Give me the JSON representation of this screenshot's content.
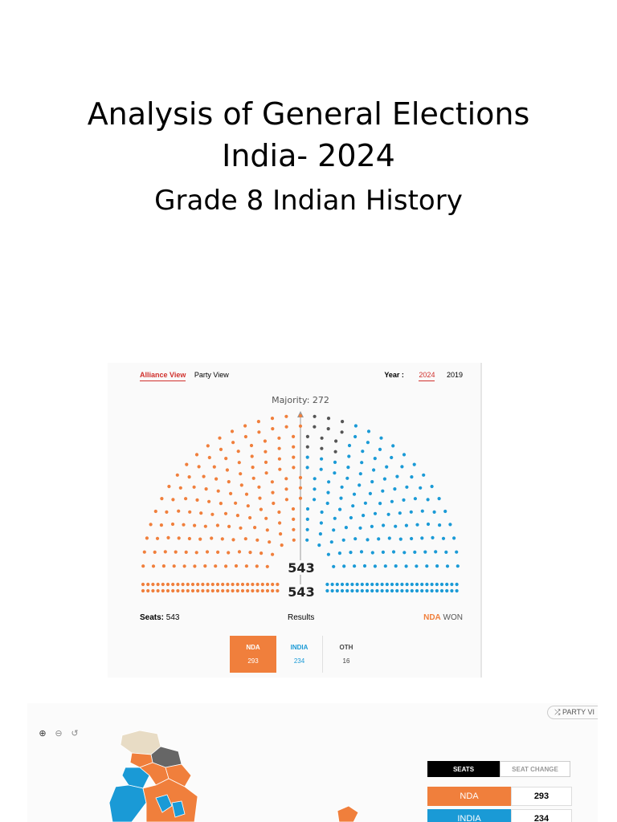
{
  "slide": {
    "title_line1": "Analysis of General Elections",
    "title_line2": "India- 2024",
    "subtitle": "Grade 8 Indian History"
  },
  "parliament": {
    "tabs": [
      "Alliance View",
      "Party View"
    ],
    "active_tab": "Alliance View",
    "year_label": "Year :",
    "years": [
      "2024",
      "2019"
    ],
    "active_year": "2024",
    "majority_label": "Majority: 272",
    "total_label": "543",
    "bottom_total_label": "543",
    "seats_label": "Seats:",
    "seats_value": "543",
    "results_label": "Results",
    "winner": "NDA",
    "won_label": "WON",
    "tally": [
      {
        "name": "NDA",
        "seats": "293",
        "color": "#f07f3c"
      },
      {
        "name": "INDIA",
        "seats": "234",
        "color": "#1a9ad6"
      },
      {
        "name": "OTH",
        "seats": "16",
        "color": "#555555"
      }
    ],
    "colors": {
      "nda": "#f07f3c",
      "india": "#1a9ad6",
      "oth": "#555555"
    }
  },
  "map": {
    "party_view_button": "⤮ PARTY VI",
    "zoom_icons": [
      "zoom-in-icon",
      "zoom-out-icon",
      "reset-icon"
    ],
    "seat_tabs": [
      "SEATS",
      "SEAT CHANGE"
    ],
    "rows": [
      {
        "name": "NDA",
        "value": "293",
        "color": "#f07f3c"
      },
      {
        "name": "INDIA",
        "value": "234",
        "color": "#1a9ad6"
      }
    ]
  }
}
